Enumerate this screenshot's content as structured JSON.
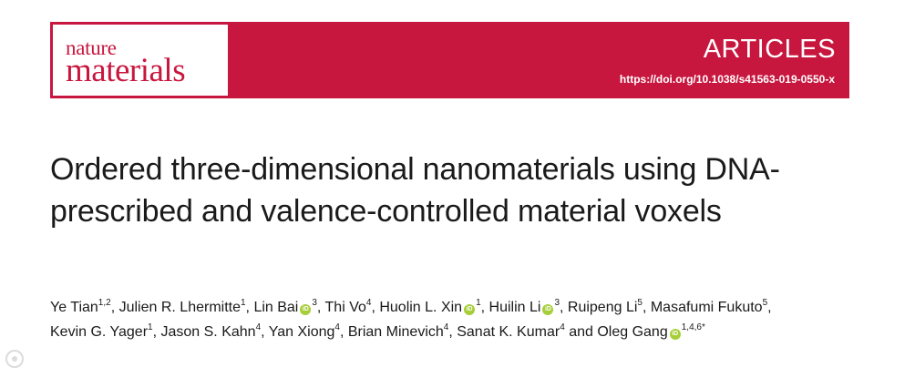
{
  "journal": {
    "logo_line1": "nature",
    "logo_line2": "materials",
    "section": "ARTICLES",
    "doi": "https://doi.org/10.1038/s41563-019-0550-x",
    "brand_color": "#c8173f"
  },
  "title": "Ordered three-dimensional nanomaterials using DNA-prescribed and valence-controlled material voxels",
  "authors": [
    {
      "name": "Ye Tian",
      "aff": "1,2",
      "orcid": false
    },
    {
      "name": "Julien R. Lhermitte",
      "aff": "1",
      "orcid": false
    },
    {
      "name": "Lin Bai",
      "aff": "3",
      "orcid": true
    },
    {
      "name": "Thi Vo",
      "aff": "4",
      "orcid": false
    },
    {
      "name": "Huolin L. Xin",
      "aff": "1",
      "orcid": true
    },
    {
      "name": "Huilin Li",
      "aff": "3",
      "orcid": true
    },
    {
      "name": "Ruipeng Li",
      "aff": "5",
      "orcid": false
    },
    {
      "name": "Masafumi Fukuto",
      "aff": "5",
      "orcid": false
    },
    {
      "name": "Kevin G. Yager",
      "aff": "1",
      "orcid": false
    },
    {
      "name": "Jason S. Kahn",
      "aff": "4",
      "orcid": false
    },
    {
      "name": "Yan Xiong",
      "aff": "4",
      "orcid": false
    },
    {
      "name": "Brian Minevich",
      "aff": "4",
      "orcid": false
    },
    {
      "name": "Sanat K. Kumar",
      "aff": "4",
      "orcid": false
    },
    {
      "name": "Oleg Gang",
      "aff": "1,4,6*",
      "orcid": true
    }
  ],
  "orcid_icon": "orcid-icon",
  "orcid_color": "#a6ce39"
}
